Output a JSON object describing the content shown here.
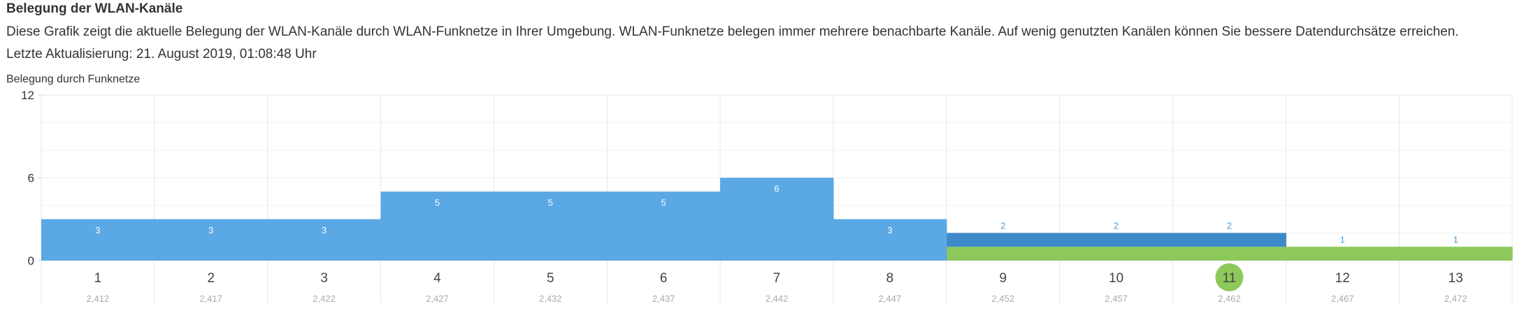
{
  "header": {
    "title": "Belegung der WLAN-Kanäle",
    "description": "Diese Grafik zeigt die aktuelle Belegung der WLAN-Kanäle durch WLAN-Funknetze in Ihrer Umgebung. WLAN-Funknetze belegen immer mehrere benachbarte Kanäle. Auf wenig genutzten Kanälen können Sie bessere Datendurchsätze erreichen.",
    "last_update": "Letzte Aktualisierung: 21. August 2019, 01:08:48 Uhr"
  },
  "chart_data": {
    "type": "bar",
    "ylabel": "Belegung durch Funknetze",
    "ylim": [
      0,
      12
    ],
    "yticks": [
      "0",
      "6",
      "12"
    ],
    "grid": true,
    "categories": [
      "1",
      "2",
      "3",
      "4",
      "5",
      "6",
      "7",
      "8",
      "9",
      "10",
      "11",
      "12",
      "13"
    ],
    "sublabels": [
      "2,412",
      "2,417",
      "2,422",
      "2,427",
      "2,432",
      "2,437",
      "2,442",
      "2,447",
      "2,452",
      "2,457",
      "2,462",
      "2,467",
      "2,472"
    ],
    "highlighted_channel": "11",
    "series": [
      {
        "values": [
          0,
          0,
          0,
          0,
          0,
          0,
          0,
          0,
          1,
          1,
          1,
          1,
          1
        ],
        "color": "#8cc85a"
      },
      {
        "values": [
          0,
          0,
          0,
          0,
          0,
          0,
          0,
          0,
          1,
          1,
          1,
          0,
          0
        ],
        "color": "#3e8ac8"
      },
      {
        "values": [
          3,
          3,
          3,
          5,
          5,
          5,
          6,
          3,
          0,
          0,
          0,
          0,
          0
        ],
        "color": "#5aa8e4"
      }
    ],
    "totals": [
      3,
      3,
      3,
      5,
      5,
      5,
      6,
      3,
      2,
      2,
      2,
      1,
      1
    ],
    "label_color_light": "#ffffff",
    "label_color_dark": "#4a9edc",
    "highlight_color": "#8cc85a"
  }
}
